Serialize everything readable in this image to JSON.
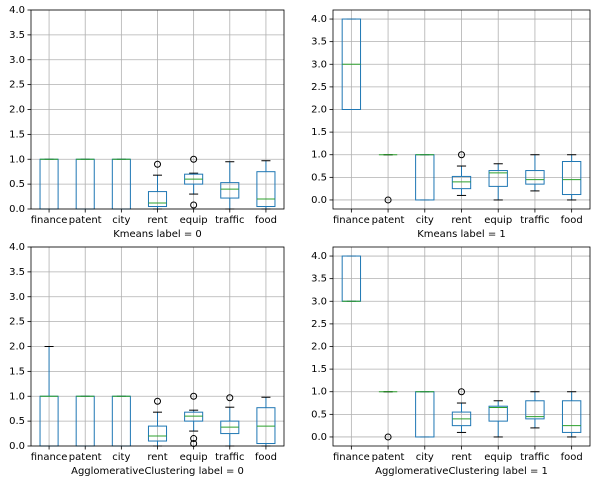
{
  "chart_data": [
    {
      "type": "box",
      "xlabel": "Kmeans label = 0",
      "categories": [
        "finance",
        "patent",
        "city",
        "rent",
        "equip",
        "traffic",
        "food"
      ],
      "boxes": [
        {
          "low": 0,
          "q1": 0,
          "median": 1,
          "q3": 1,
          "high": 1,
          "outliers": []
        },
        {
          "low": 0,
          "q1": 0,
          "median": 1,
          "q3": 1,
          "high": 1,
          "outliers": []
        },
        {
          "low": 0,
          "q1": 0,
          "median": 1,
          "q3": 1,
          "high": 1,
          "outliers": []
        },
        {
          "low": 0,
          "q1": 0.05,
          "median": 0.12,
          "q3": 0.35,
          "high": 0.68,
          "outliers": [
            0.9
          ]
        },
        {
          "low": 0.3,
          "q1": 0.5,
          "median": 0.6,
          "q3": 0.7,
          "high": 0.72,
          "outliers": [
            1.0,
            0.08
          ]
        },
        {
          "low": 0,
          "q1": 0.22,
          "median": 0.4,
          "q3": 0.53,
          "high": 0.95,
          "outliers": []
        },
        {
          "low": 0,
          "q1": 0.05,
          "median": 0.2,
          "q3": 0.75,
          "high": 0.97,
          "outliers": []
        }
      ],
      "ylim": [
        0,
        4
      ],
      "yticks": [
        {
          "value": 0,
          "label": "0.0"
        },
        0.5,
        {
          "value": 1,
          "label": "1.0"
        },
        1.5,
        {
          "value": 2,
          "label": "2.0"
        },
        2.5,
        {
          "value": 3,
          "label": "3.0"
        },
        3.5,
        {
          "value": 4,
          "label": "4.0"
        }
      ],
      "grid": true,
      "box_color": "#1f77b4",
      "median_color": "#2ca02c"
    },
    {
      "type": "box",
      "xlabel": "Kmeans label = 1",
      "categories": [
        "finance",
        "patent",
        "city",
        "rent",
        "equip",
        "traffic",
        "food"
      ],
      "boxes": [
        {
          "low": 2,
          "q1": 2,
          "median": 3,
          "q3": 4,
          "high": 4,
          "outliers": []
        },
        {
          "low": 1,
          "q1": 1,
          "median": 1,
          "q3": 1,
          "high": 1,
          "outliers": [
            0
          ]
        },
        {
          "low": 0,
          "q1": 0,
          "median": 1,
          "q3": 1,
          "high": 1,
          "outliers": []
        },
        {
          "low": 0.1,
          "q1": 0.25,
          "median": 0.4,
          "q3": 0.52,
          "high": 0.75,
          "outliers": [
            1.0
          ]
        },
        {
          "low": 0,
          "q1": 0.3,
          "median": 0.6,
          "q3": 0.65,
          "high": 0.8,
          "outliers": []
        },
        {
          "low": 0.2,
          "q1": 0.35,
          "median": 0.45,
          "q3": 0.65,
          "high": 1.0,
          "outliers": []
        },
        {
          "low": 0,
          "q1": 0.12,
          "median": 0.45,
          "q3": 0.85,
          "high": 1.0,
          "outliers": []
        }
      ],
      "ylim": [
        -0.2,
        4.2
      ],
      "yticks": [
        {
          "value": 0,
          "label": "0.0"
        },
        0.5,
        {
          "value": 1,
          "label": "1.0"
        },
        1.5,
        {
          "value": 2,
          "label": "2.0"
        },
        2.5,
        {
          "value": 3,
          "label": "3.0"
        },
        3.5,
        {
          "value": 4,
          "label": "4.0"
        }
      ],
      "grid": true,
      "box_color": "#1f77b4",
      "median_color": "#2ca02c"
    },
    {
      "type": "box",
      "xlabel": "AgglomerativeClustering label = 0",
      "categories": [
        "finance",
        "patent",
        "city",
        "rent",
        "equip",
        "traffic",
        "food"
      ],
      "boxes": [
        {
          "low": 0,
          "q1": 0,
          "median": 1,
          "q3": 1,
          "high": 2,
          "outliers": []
        },
        {
          "low": 0,
          "q1": 0,
          "median": 1,
          "q3": 1,
          "high": 1,
          "outliers": []
        },
        {
          "low": 0,
          "q1": 0,
          "median": 1,
          "q3": 1,
          "high": 1,
          "outliers": []
        },
        {
          "low": 0,
          "q1": 0.1,
          "median": 0.2,
          "q3": 0.4,
          "high": 0.68,
          "outliers": [
            0.9
          ]
        },
        {
          "low": 0.3,
          "q1": 0.5,
          "median": 0.6,
          "q3": 0.68,
          "high": 0.72,
          "outliers": [
            1.0,
            0.15,
            0.05
          ]
        },
        {
          "low": 0,
          "q1": 0.25,
          "median": 0.38,
          "q3": 0.5,
          "high": 0.78,
          "outliers": [
            0.97
          ]
        },
        {
          "low": 0,
          "q1": 0.05,
          "median": 0.4,
          "q3": 0.77,
          "high": 0.98,
          "outliers": []
        }
      ],
      "ylim": [
        0,
        4
      ],
      "yticks": [
        {
          "value": 0,
          "label": "0.0"
        },
        0.5,
        {
          "value": 1,
          "label": "1.0"
        },
        1.5,
        {
          "value": 2,
          "label": "2.0"
        },
        2.5,
        {
          "value": 3,
          "label": "3.0"
        },
        3.5,
        {
          "value": 4,
          "label": "4.0"
        }
      ],
      "grid": true,
      "box_color": "#1f77b4",
      "median_color": "#2ca02c"
    },
    {
      "type": "box",
      "xlabel": "AgglomerativeClustering label = 1",
      "categories": [
        "finance",
        "patent",
        "city",
        "rent",
        "equip",
        "traffic",
        "food"
      ],
      "boxes": [
        {
          "low": 3,
          "q1": 3,
          "median": 3,
          "q3": 4,
          "high": 4,
          "outliers": []
        },
        {
          "low": 1,
          "q1": 1,
          "median": 1,
          "q3": 1,
          "high": 1,
          "outliers": [
            0
          ]
        },
        {
          "low": 0,
          "q1": 0,
          "median": 1,
          "q3": 1,
          "high": 1,
          "outliers": []
        },
        {
          "low": 0.1,
          "q1": 0.25,
          "median": 0.4,
          "q3": 0.55,
          "high": 0.75,
          "outliers": [
            1.0
          ]
        },
        {
          "low": 0,
          "q1": 0.35,
          "median": 0.65,
          "q3": 0.68,
          "high": 0.8,
          "outliers": []
        },
        {
          "low": 0.2,
          "q1": 0.4,
          "median": 0.45,
          "q3": 0.8,
          "high": 1.0,
          "outliers": []
        },
        {
          "low": 0,
          "q1": 0.1,
          "median": 0.25,
          "q3": 0.8,
          "high": 1.0,
          "outliers": []
        }
      ],
      "ylim": [
        -0.2,
        4.2
      ],
      "yticks": [
        {
          "value": 0,
          "label": "0.0"
        },
        0.5,
        {
          "value": 1,
          "label": "1.0"
        },
        1.5,
        {
          "value": 2,
          "label": "2.0"
        },
        2.5,
        {
          "value": 3,
          "label": "3.0"
        },
        3.5,
        {
          "value": 4,
          "label": "4.0"
        }
      ],
      "grid": true,
      "box_color": "#1f77b4",
      "median_color": "#2ca02c"
    }
  ]
}
